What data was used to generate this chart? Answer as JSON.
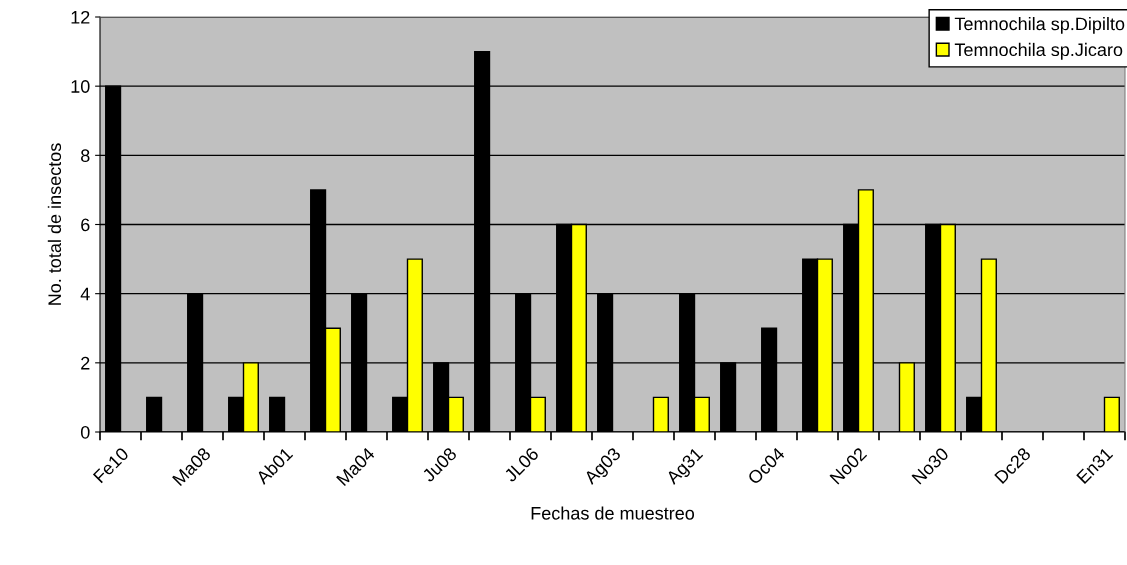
{
  "chart_data": {
    "type": "bar",
    "categories": [
      "Fe10",
      null,
      "Ma08",
      null,
      "Ab01",
      null,
      "Ma04",
      null,
      "Ju08",
      null,
      "JL06",
      null,
      "Ag03",
      null,
      "Ag31",
      null,
      "Oc04",
      null,
      "No02",
      null,
      "No30",
      null,
      "Dc28",
      null,
      "En31"
    ],
    "series": [
      {
        "name": "Temnochila sp.Dipilto",
        "color": "#000000",
        "values": [
          10,
          1,
          4,
          1,
          1,
          7,
          4,
          1,
          2,
          11,
          4,
          6,
          4,
          null,
          4,
          2,
          3,
          5,
          6,
          null,
          6,
          1,
          null,
          null,
          null
        ]
      },
      {
        "name": "Temnochila sp.Jicaro",
        "color": "#ffff00",
        "values": [
          null,
          null,
          null,
          2,
          null,
          3,
          null,
          5,
          1,
          null,
          1,
          6,
          null,
          1,
          1,
          null,
          null,
          5,
          7,
          2,
          6,
          5,
          null,
          null,
          1
        ]
      }
    ],
    "xlabel": "Fechas de muestreo",
    "ylabel": "No. total de insectos",
    "ylim": [
      0,
      12
    ],
    "yticks": [
      0,
      2,
      4,
      6,
      8,
      10,
      12
    ],
    "grid": "y",
    "legend": "top right"
  }
}
